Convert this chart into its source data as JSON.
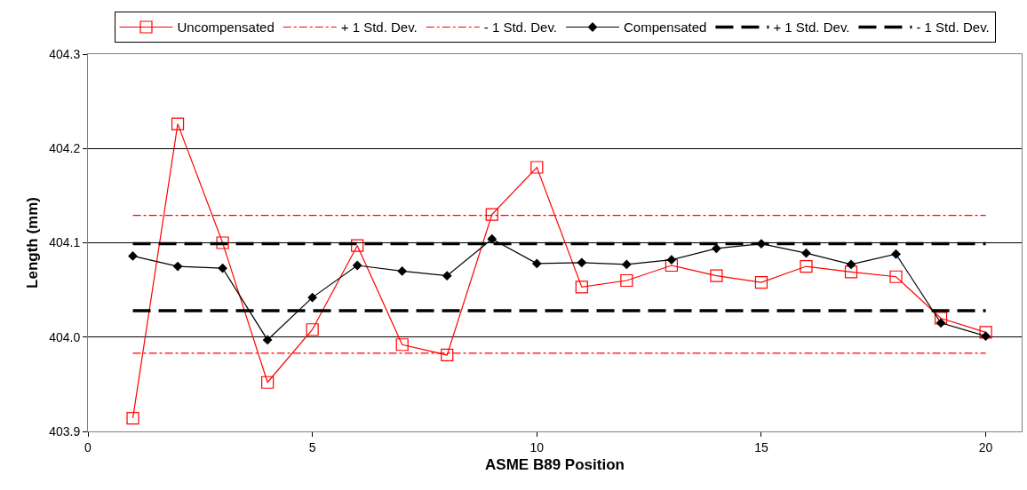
{
  "chart_data": {
    "type": "line",
    "xlabel": "ASME B89 Position",
    "ylabel": "Length (mm)",
    "x": [
      1,
      2,
      3,
      4,
      5,
      6,
      7,
      8,
      9,
      10,
      11,
      12,
      13,
      14,
      15,
      16,
      17,
      18,
      19,
      20
    ],
    "series": [
      {
        "name": "Uncompensated",
        "color": "#ff0000",
        "marker": "square",
        "line_style": "solid",
        "values": [
          403.914,
          404.226,
          404.1,
          403.952,
          404.008,
          404.097,
          403.992,
          403.981,
          404.13,
          404.18,
          404.053,
          404.06,
          404.076,
          404.065,
          404.058,
          404.075,
          404.069,
          404.064,
          404.02,
          404.005
        ]
      },
      {
        "name": "+ 1 Std. Dev.",
        "color": "#ff0000",
        "marker": "none",
        "line_style": "dashdot",
        "values": [
          404.129,
          404.129,
          404.129,
          404.129,
          404.129,
          404.129,
          404.129,
          404.129,
          404.129,
          404.129,
          404.129,
          404.129,
          404.129,
          404.129,
          404.129,
          404.129,
          404.129,
          404.129,
          404.129,
          404.129
        ]
      },
      {
        "name": "- 1 Std. Dev.",
        "color": "#ff0000",
        "marker": "none",
        "line_style": "dashdot",
        "values": [
          403.983,
          403.983,
          403.983,
          403.983,
          403.983,
          403.983,
          403.983,
          403.983,
          403.983,
          403.983,
          403.983,
          403.983,
          403.983,
          403.983,
          403.983,
          403.983,
          403.983,
          403.983,
          403.983,
          403.983
        ]
      },
      {
        "name": "Compensated",
        "color": "#000000",
        "marker": "diamond",
        "line_style": "solid",
        "values": [
          404.086,
          404.075,
          404.073,
          403.997,
          404.042,
          404.076,
          404.07,
          404.065,
          404.104,
          404.078,
          404.079,
          404.077,
          404.082,
          404.094,
          404.099,
          404.089,
          404.077,
          404.088,
          404.015,
          404.001
        ]
      },
      {
        "name": "+ 1 Std. Dev.",
        "color": "#000000",
        "marker": "none",
        "line_style": "dashed",
        "values": [
          404.099,
          404.099,
          404.099,
          404.099,
          404.099,
          404.099,
          404.099,
          404.099,
          404.099,
          404.099,
          404.099,
          404.099,
          404.099,
          404.099,
          404.099,
          404.099,
          404.099,
          404.099,
          404.099,
          404.099
        ]
      },
      {
        "name": "- 1 Std. Dev.",
        "color": "#000000",
        "marker": "none",
        "line_style": "dashed",
        "values": [
          404.028,
          404.028,
          404.028,
          404.028,
          404.028,
          404.028,
          404.028,
          404.028,
          404.028,
          404.028,
          404.028,
          404.028,
          404.028,
          404.028,
          404.028,
          404.028,
          404.028,
          404.028,
          404.028,
          404.028
        ]
      }
    ],
    "xlim": [
      0,
      20.8
    ],
    "xticks": [
      0,
      5,
      10,
      15,
      20
    ],
    "ylim": [
      403.9,
      404.3
    ],
    "yticks": [
      {
        "value": 403.9,
        "label": "403.9"
      },
      {
        "value": 404.0,
        "label": "404.0"
      },
      {
        "value": 404.1,
        "label": "404.1"
      },
      {
        "value": 404.2,
        "label": "404.2"
      },
      {
        "value": 404.3,
        "label": "404.3"
      }
    ],
    "grid": "y",
    "legend": "top"
  }
}
